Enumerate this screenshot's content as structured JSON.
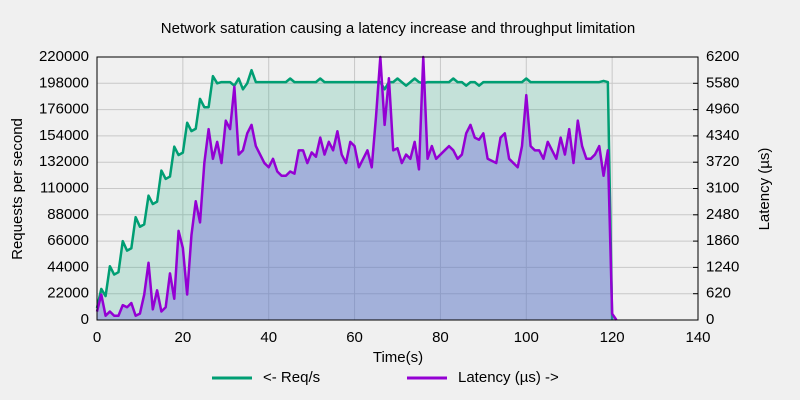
{
  "chart_data": {
    "type": "line",
    "title": "Network saturation causing a latency increase and throughput limitation",
    "x_label": "Time(s)",
    "y_label": "Requests per second",
    "y2_label": "Latency (µs)",
    "xlim": [
      0,
      140
    ],
    "xticks": [
      0,
      20,
      40,
      60,
      80,
      100,
      120,
      140
    ],
    "ylim": [
      0,
      220000
    ],
    "yticks": [
      0,
      22000,
      44000,
      66000,
      88000,
      110000,
      132000,
      154000,
      176000,
      198000,
      220000
    ],
    "y2lim": [
      0,
      6200
    ],
    "y2ticks": [
      0,
      620,
      1240,
      1860,
      2480,
      3100,
      3720,
      4340,
      4960,
      5580,
      6200
    ],
    "grid": true,
    "legend": "bottom",
    "area": true,
    "x": [
      0,
      1,
      2,
      3,
      4,
      5,
      6,
      7,
      8,
      9,
      10,
      11,
      12,
      13,
      14,
      15,
      16,
      17,
      18,
      19,
      20,
      21,
      22,
      23,
      24,
      25,
      26,
      27,
      28,
      29,
      30,
      31,
      32,
      33,
      34,
      35,
      36,
      37,
      38,
      39,
      40,
      41,
      42,
      43,
      44,
      45,
      46,
      47,
      48,
      49,
      50,
      51,
      52,
      53,
      54,
      55,
      56,
      57,
      58,
      59,
      60,
      61,
      62,
      63,
      64,
      65,
      66,
      67,
      68,
      69,
      70,
      71,
      72,
      73,
      74,
      75,
      76,
      77,
      78,
      79,
      80,
      81,
      82,
      83,
      84,
      85,
      86,
      87,
      88,
      89,
      90,
      91,
      92,
      93,
      94,
      95,
      96,
      97,
      98,
      99,
      100,
      101,
      102,
      103,
      104,
      105,
      106,
      107,
      108,
      109,
      110,
      111,
      112,
      113,
      114,
      115,
      116,
      117,
      118,
      119,
      120,
      121
    ],
    "series": [
      {
        "name": "<- Req/s",
        "color": "#009e73",
        "axis": "y",
        "values": [
          10000,
          26000,
          20000,
          45000,
          38000,
          40000,
          66000,
          58000,
          60000,
          86000,
          78000,
          80000,
          104000,
          97000,
          99000,
          125000,
          118000,
          120000,
          145000,
          138000,
          140000,
          165000,
          158000,
          160000,
          185000,
          178000,
          178000,
          204000,
          198000,
          199000,
          199000,
          199000,
          196000,
          202000,
          193000,
          198000,
          209000,
          199000,
          199000,
          199000,
          199000,
          199000,
          199000,
          199000,
          199000,
          202000,
          199000,
          199000,
          199000,
          199000,
          199000,
          199000,
          202000,
          199000,
          199000,
          199000,
          199000,
          199000,
          199000,
          199000,
          199000,
          199000,
          199000,
          199000,
          199000,
          199000,
          199000,
          193000,
          199000,
          199000,
          202000,
          199000,
          196000,
          199000,
          202000,
          199000,
          198000,
          199000,
          199000,
          199000,
          199000,
          199000,
          199000,
          202000,
          199000,
          199000,
          196000,
          199000,
          199000,
          196000,
          199000,
          199000,
          199000,
          199000,
          199000,
          199000,
          199000,
          199000,
          199000,
          199000,
          202000,
          199000,
          199000,
          199000,
          199000,
          199000,
          199000,
          199000,
          199000,
          199000,
          199000,
          199000,
          199000,
          199000,
          199000,
          199000,
          199000,
          199000,
          200000,
          199000,
          0,
          null
        ]
      },
      {
        "name": "Latency (µs) ->",
        "color": "#9400d3",
        "axis": "y2",
        "values": [
          200,
          600,
          100,
          200,
          100,
          100,
          350,
          300,
          400,
          100,
          150,
          600,
          1350,
          250,
          700,
          200,
          300,
          1100,
          500,
          2100,
          1700,
          600,
          2000,
          2800,
          2300,
          3700,
          4500,
          3800,
          4200,
          3700,
          4700,
          4500,
          5500,
          3900,
          4000,
          4400,
          4600,
          4100,
          3900,
          3700,
          3600,
          3800,
          3500,
          3400,
          3400,
          3500,
          3450,
          4000,
          4000,
          3700,
          3950,
          3850,
          4300,
          3900,
          4200,
          4000,
          4450,
          3900,
          3700,
          4200,
          4100,
          3600,
          3800,
          4000,
          3600,
          4800,
          6200,
          4600,
          5700,
          4000,
          4050,
          3700,
          3900,
          3800,
          4200,
          3550,
          6200,
          3800,
          4100,
          3800,
          3900,
          4000,
          4100,
          4000,
          3800,
          3900,
          4400,
          4600,
          4300,
          4250,
          4400,
          3800,
          3750,
          3700,
          4300,
          4400,
          3800,
          3700,
          3600,
          4100,
          5300,
          4100,
          4000,
          4000,
          3800,
          4200,
          4000,
          3800,
          4300,
          3900,
          4500,
          3700,
          4700,
          4100,
          3800,
          3800,
          3900,
          4100,
          3400,
          4000,
          150,
          0
        ]
      }
    ]
  }
}
